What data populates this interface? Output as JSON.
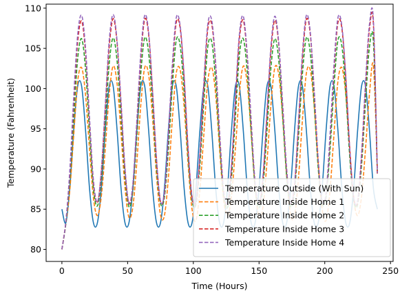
{
  "chart_data": {
    "type": "line",
    "title": "",
    "xlabel": "Time (Hours)",
    "ylabel": "Temperature (Fahrenheit)",
    "xlim": [
      -12,
      252
    ],
    "ylim": [
      78.5,
      110.5
    ],
    "xticks": [
      0,
      50,
      100,
      150,
      200,
      250
    ],
    "yticks": [
      80,
      85,
      90,
      95,
      100,
      105,
      110
    ],
    "grid": false,
    "legend_position": "lower-right",
    "series": [
      {
        "name": "Temperature Outside (With Sun)",
        "color": "#1f77b4",
        "style": "solid",
        "x": [
          0,
          3,
          6,
          9,
          12,
          15,
          18,
          21,
          24,
          27,
          30,
          33,
          36,
          39,
          42,
          45,
          48,
          51,
          54,
          57,
          60,
          63,
          66,
          69,
          72,
          75,
          78,
          81,
          84,
          87,
          90,
          93,
          96,
          99,
          102,
          105,
          108,
          111,
          114,
          117,
          120,
          123,
          126,
          129,
          132,
          135,
          138,
          141,
          144,
          147,
          150,
          153,
          156,
          159,
          162,
          165,
          168,
          171,
          174,
          177,
          180,
          183,
          186,
          189,
          192,
          195,
          198,
          201,
          204,
          207,
          210,
          213,
          216,
          219,
          222,
          225,
          228,
          231,
          234,
          237,
          240
        ],
        "y": [
          85.0,
          83.3,
          87.6,
          94.8,
          100.3,
          100.3,
          94.8,
          87.6,
          83.3,
          83.3,
          87.6,
          94.8,
          100.3,
          100.3,
          94.8,
          87.6,
          83.3,
          83.3,
          87.6,
          94.8,
          100.3,
          100.3,
          94.8,
          87.6,
          83.3,
          83.3,
          87.6,
          94.8,
          100.3,
          100.3,
          94.8,
          87.6,
          83.3,
          83.3,
          87.6,
          94.8,
          100.3,
          100.3,
          94.8,
          87.6,
          83.3,
          83.3,
          87.6,
          94.8,
          100.3,
          100.3,
          94.8,
          87.6,
          83.3,
          83.3,
          87.6,
          94.8,
          100.3,
          100.3,
          94.8,
          87.6,
          83.3,
          83.3,
          87.6,
          94.8,
          100.3,
          100.3,
          94.8,
          87.6,
          83.3,
          83.3,
          87.6,
          94.8,
          100.3,
          100.3,
          94.8,
          87.6,
          83.3,
          83.3,
          87.6,
          94.8,
          100.3,
          100.3,
          94.8,
          87.6,
          85.0
        ]
      },
      {
        "name": "Temperature Inside Home 1",
        "color": "#ff7f0e",
        "style": "dashed",
        "x": [
          0,
          3,
          6,
          9,
          12,
          15,
          18,
          21,
          24,
          27,
          30,
          33,
          36,
          39,
          42,
          45,
          48,
          51,
          54,
          57,
          60,
          63,
          66,
          69,
          72,
          75,
          78,
          81,
          84,
          87,
          90,
          93,
          96,
          99,
          102,
          105,
          108,
          111,
          114,
          117,
          120,
          123,
          126,
          129,
          132,
          135,
          138,
          141,
          144,
          147,
          150,
          153,
          156,
          159,
          162,
          165,
          168,
          171,
          174,
          177,
          180,
          183,
          186,
          189,
          192,
          195,
          198,
          201,
          204,
          207,
          210,
          213,
          216,
          219,
          222,
          225,
          228,
          231,
          234,
          237,
          240
        ],
        "y": [
          80.0,
          83.2,
          87.3,
          94.2,
          100.9,
          102.6,
          99.2,
          92.5,
          86.4,
          84.2,
          86.6,
          92.5,
          99.3,
          102.8,
          100.6,
          94.4,
          87.7,
          84.0,
          85.3,
          90.8,
          97.9,
          102.6,
          101.7,
          96.3,
          89.1,
          84.3,
          84.2,
          88.9,
          96.1,
          101.9,
          102.3,
          97.7,
          90.6,
          85.0,
          83.6,
          87.4,
          94.3,
          100.9,
          102.6,
          99.2,
          92.4,
          86.3,
          84.2,
          86.6,
          92.5,
          99.3,
          102.8,
          100.6,
          94.4,
          87.7,
          84.0,
          85.3,
          90.8,
          97.9,
          102.6,
          101.7,
          96.3,
          89.1,
          84.3,
          84.2,
          88.9,
          96.1,
          101.9,
          102.3,
          97.7,
          90.6,
          85.0,
          83.6,
          87.4,
          94.3,
          100.9,
          102.6,
          99.2,
          92.4,
          86.3,
          84.2,
          86.6,
          92.5,
          99.3,
          102.8,
          90.0
        ]
      },
      {
        "name": "Temperature Inside Home 2",
        "color": "#2ca02c",
        "style": "dashed",
        "x": [
          0,
          3,
          6,
          9,
          12,
          15,
          18,
          21,
          24,
          27,
          30,
          33,
          36,
          39,
          42,
          45,
          48,
          51,
          54,
          57,
          60,
          63,
          66,
          69,
          72,
          75,
          78,
          81,
          84,
          87,
          90,
          93,
          96,
          99,
          102,
          105,
          108,
          111,
          114,
          117,
          120,
          123,
          126,
          129,
          132,
          135,
          138,
          141,
          144,
          147,
          150,
          153,
          156,
          159,
          162,
          165,
          168,
          171,
          174,
          177,
          180,
          183,
          186,
          189,
          192,
          195,
          198,
          201,
          204,
          207,
          210,
          213,
          216,
          219,
          222,
          225,
          228,
          231,
          234,
          237,
          240
        ],
        "y": [
          80.0,
          83.2,
          88.6,
          96.4,
          103.7,
          106.2,
          102.4,
          94.6,
          87.5,
          85.4,
          88.8,
          95.8,
          103.1,
          106.3,
          103.4,
          96.4,
          89.1,
          85.3,
          87.3,
          94.0,
          101.8,
          106.3,
          104.4,
          97.9,
          90.1,
          85.7,
          86.5,
          92.4,
          100.2,
          106.0,
          105.3,
          99.5,
          91.5,
          86.1,
          85.6,
          90.5,
          98.3,
          105.2,
          105.8,
          100.8,
          93.2,
          86.8,
          85.2,
          88.9,
          96.5,
          104.1,
          106.2,
          102.1,
          94.6,
          87.7,
          85.2,
          87.9,
          94.7,
          102.5,
          106.2,
          103.5,
          96.4,
          89.1,
          85.3,
          87.3,
          94.0,
          101.8,
          106.3,
          104.4,
          97.9,
          90.1,
          85.7,
          86.5,
          92.4,
          100.2,
          106.0,
          105.3,
          99.5,
          91.5,
          86.1,
          85.6,
          90.5,
          98.3,
          105.2,
          105.8,
          89.5
        ]
      },
      {
        "name": "Temperature Inside Home 3",
        "color": "#d62728",
        "style": "dashed",
        "x": [
          0,
          3,
          6,
          9,
          12,
          15,
          18,
          21,
          24,
          27,
          30,
          33,
          36,
          39,
          42,
          45,
          48,
          51,
          54,
          57,
          60,
          63,
          66,
          69,
          72,
          75,
          78,
          81,
          84,
          87,
          90,
          93,
          96,
          99,
          102,
          105,
          108,
          111,
          114,
          117,
          120,
          123,
          126,
          129,
          132,
          135,
          138,
          141,
          144,
          147,
          150,
          153,
          156,
          159,
          162,
          165,
          168,
          171,
          174,
          177,
          180,
          183,
          186,
          189,
          192,
          195,
          198,
          201,
          204,
          207,
          210,
          213,
          216,
          219,
          222,
          225,
          228,
          231,
          234,
          237,
          240
        ],
        "y": [
          80.0,
          83.4,
          89.4,
          98.2,
          105.8,
          108.4,
          104.4,
          96.0,
          88.3,
          85.8,
          89.6,
          97.4,
          105.2,
          108.7,
          105.6,
          98.0,
          89.9,
          85.7,
          87.9,
          95.4,
          103.7,
          108.6,
          106.7,
          99.5,
          91.1,
          86.0,
          86.9,
          93.7,
          102.2,
          108.2,
          107.5,
          101.3,
          92.5,
          86.5,
          85.9,
          91.5,
          100.1,
          107.4,
          108.0,
          102.8,
          94.3,
          87.3,
          85.6,
          89.9,
          98.2,
          106.1,
          108.5,
          104.0,
          95.8,
          88.2,
          85.6,
          88.8,
          96.5,
          104.6,
          108.5,
          105.4,
          97.8,
          89.9,
          85.7,
          87.9,
          95.4,
          103.7,
          108.6,
          106.7,
          99.5,
          91.1,
          86.0,
          86.9,
          93.7,
          102.2,
          108.2,
          107.5,
          101.3,
          92.5,
          86.5,
          85.9,
          91.5,
          100.1,
          107.4,
          108.0,
          89.3
        ]
      },
      {
        "name": "Temperature Inside Home 4",
        "color": "#9467bd",
        "style": "dashed",
        "x": [
          0,
          3,
          6,
          9,
          12,
          15,
          18,
          21,
          24,
          27,
          30,
          33,
          36,
          39,
          42,
          45,
          48,
          51,
          54,
          57,
          60,
          63,
          66,
          69,
          72,
          75,
          78,
          81,
          84,
          87,
          90,
          93,
          96,
          99,
          102,
          105,
          108,
          111,
          114,
          117,
          120,
          123,
          126,
          129,
          132,
          135,
          138,
          141,
          144,
          147,
          150,
          153,
          156,
          159,
          162,
          165,
          168,
          171,
          174,
          177,
          180,
          183,
          186,
          189,
          192,
          195,
          198,
          201,
          204,
          207,
          210,
          213,
          216,
          219,
          222,
          225,
          228,
          231,
          234,
          237,
          240
        ],
        "y": [
          80.0,
          83.5,
          89.8,
          99.0,
          106.7,
          109.1,
          105.0,
          96.4,
          88.6,
          85.9,
          89.9,
          98.0,
          106.0,
          109.2,
          105.9,
          98.3,
          90.1,
          85.8,
          88.2,
          96.0,
          104.4,
          109.1,
          107.0,
          99.7,
          91.2,
          86.0,
          87.1,
          94.3,
          102.9,
          108.8,
          107.8,
          101.5,
          92.6,
          86.5,
          86.1,
          92.0,
          100.8,
          108.0,
          108.5,
          103.1,
          94.5,
          87.4,
          85.8,
          90.4,
          98.8,
          106.7,
          109.0,
          104.3,
          96.0,
          88.3,
          85.7,
          89.2,
          97.1,
          105.2,
          109.0,
          105.7,
          97.9,
          90.0,
          85.8,
          88.2,
          96.0,
          104.4,
          109.1,
          107.0,
          99.7,
          91.2,
          86.0,
          87.1,
          94.3,
          102.9,
          108.8,
          107.8,
          101.5,
          92.6,
          86.5,
          86.1,
          92.0,
          100.8,
          108.0,
          108.5,
          89.5
        ]
      }
    ]
  }
}
